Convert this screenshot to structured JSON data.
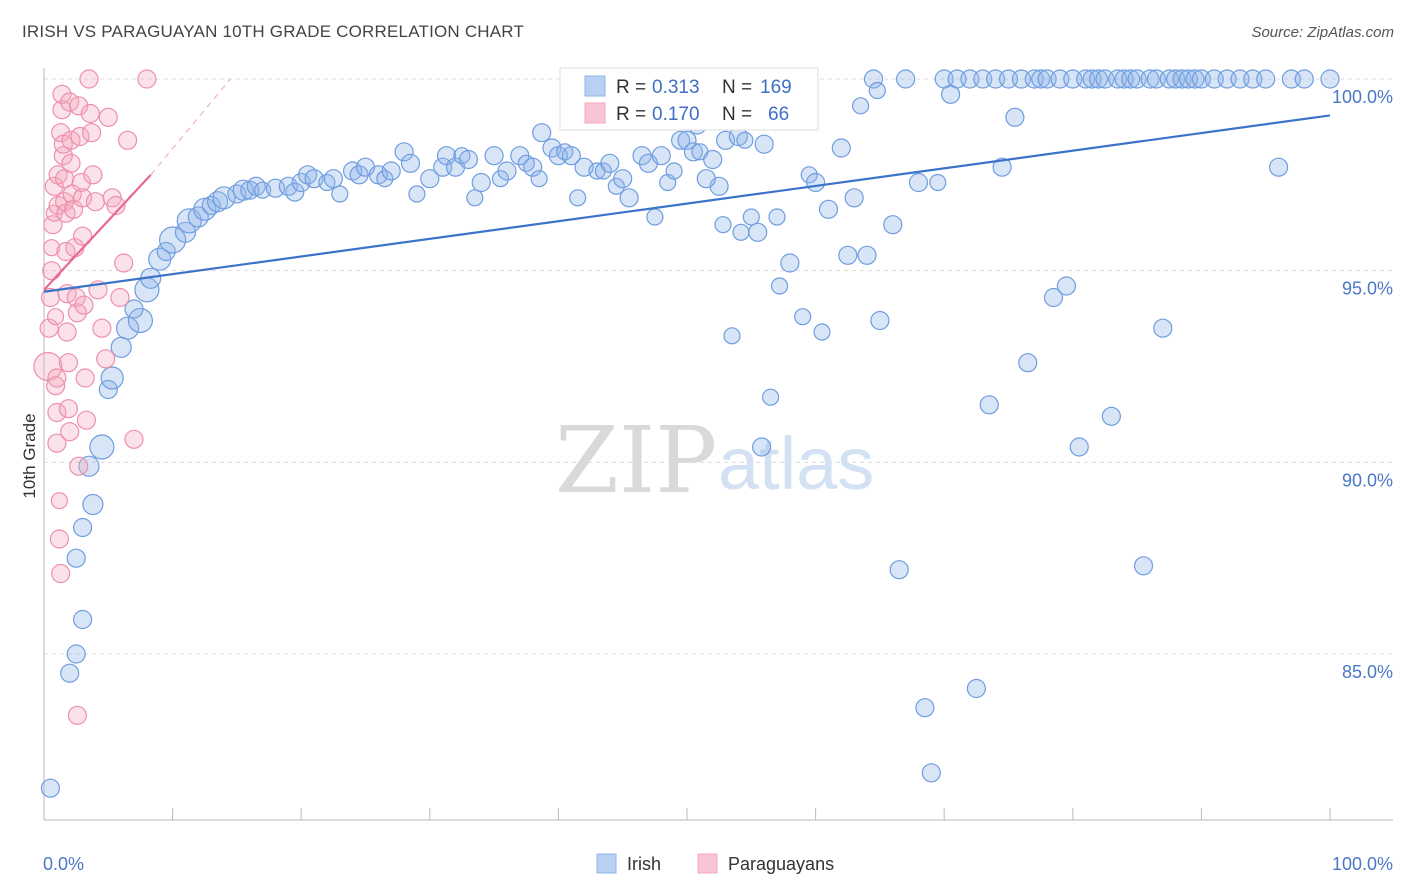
{
  "title": "IRISH VS PARAGUAYAN 10TH GRADE CORRELATION CHART",
  "source": "Source: ZipAtlas.com",
  "watermark": {
    "part1": "ZIP",
    "part2": "atlas"
  },
  "colors": {
    "irish": "#8fb4e8",
    "irish_line": "#3b73c8",
    "paraguayan": "#f4a8bf",
    "paraguayan_line": "#e8698f",
    "label": "#4a78c6"
  },
  "legend": {
    "rows": [
      {
        "r_label": "R =",
        "r_value": "0.313",
        "n_label": "N =",
        "n_value": "169"
      },
      {
        "r_label": "R =",
        "r_value": "0.170",
        "n_label": "N =",
        "n_value": "66"
      }
    ]
  },
  "bottom_legend": [
    "Irish",
    "Paraguayans"
  ],
  "chart_data": {
    "type": "scatter",
    "title": "IRISH VS PARAGUAYAN 10TH GRADE CORRELATION CHART",
    "xlabel": "",
    "ylabel": "10th Grade",
    "xlim": [
      0,
      100
    ],
    "ylim": [
      80.5,
      100.7
    ],
    "x_tick_labels": [
      "0.0%",
      "100.0%"
    ],
    "y_ticks": [
      {
        "value": 100,
        "label": "100.0%"
      },
      {
        "value": 95,
        "label": "95.0%"
      },
      {
        "value": 90,
        "label": "90.0%"
      },
      {
        "value": 85,
        "label": "85.0%"
      }
    ],
    "series": [
      {
        "name": "Irish",
        "trend": [
          [
            0,
            94.45
          ],
          [
            100,
            99.05
          ]
        ],
        "points": [
          [
            0.5,
            81.5,
            9
          ],
          [
            2,
            84.5,
            9
          ],
          [
            2.5,
            85,
            9
          ],
          [
            3,
            85.9,
            9
          ],
          [
            2.5,
            87.5,
            9
          ],
          [
            3,
            88.3,
            9
          ],
          [
            3.8,
            88.9,
            10
          ],
          [
            3.5,
            89.9,
            10
          ],
          [
            4.5,
            90.4,
            12
          ],
          [
            5,
            91.9,
            9
          ],
          [
            5.3,
            92.2,
            11
          ],
          [
            6,
            93,
            10
          ],
          [
            6.5,
            93.5,
            11
          ],
          [
            7.5,
            93.7,
            12
          ],
          [
            7,
            94,
            9
          ],
          [
            8,
            94.5,
            12
          ],
          [
            8.3,
            94.8,
            10
          ],
          [
            9,
            95.3,
            11
          ],
          [
            9.5,
            95.5,
            9
          ],
          [
            10,
            95.8,
            13
          ],
          [
            11,
            96,
            10
          ],
          [
            11.3,
            96.3,
            12
          ],
          [
            12,
            96.4,
            10
          ],
          [
            12.5,
            96.6,
            11
          ],
          [
            13,
            96.7,
            9
          ],
          [
            13.5,
            96.8,
            10
          ],
          [
            14,
            96.9,
            11
          ],
          [
            15,
            97,
            9
          ],
          [
            15.5,
            97.1,
            10
          ],
          [
            16,
            97.1,
            9
          ],
          [
            16.5,
            97.2,
            9
          ],
          [
            17,
            97.1,
            8
          ],
          [
            18,
            97.15,
            9
          ],
          [
            19,
            97.2,
            9
          ],
          [
            19.5,
            97.05,
            9
          ],
          [
            20,
            97.3,
            9
          ],
          [
            20.5,
            97.5,
            9
          ],
          [
            21,
            97.4,
            9
          ],
          [
            22,
            97.3,
            8
          ],
          [
            22.5,
            97.4,
            9
          ],
          [
            23,
            97,
            8
          ],
          [
            24,
            97.6,
            9
          ],
          [
            24.5,
            97.5,
            9
          ],
          [
            25,
            97.7,
            9
          ],
          [
            26,
            97.5,
            9
          ],
          [
            26.5,
            97.4,
            8
          ],
          [
            27,
            97.6,
            9
          ],
          [
            28,
            98.1,
            9
          ],
          [
            28.5,
            97.8,
            9
          ],
          [
            29,
            97,
            8
          ],
          [
            30,
            97.4,
            9
          ],
          [
            31,
            97.7,
            9
          ],
          [
            31.3,
            98,
            9
          ],
          [
            32,
            97.7,
            9
          ],
          [
            32.5,
            98,
            8
          ],
          [
            33,
            97.9,
            9
          ],
          [
            33.5,
            96.9,
            8
          ],
          [
            34,
            97.3,
            9
          ],
          [
            35,
            98,
            9
          ],
          [
            35.5,
            97.4,
            8
          ],
          [
            36,
            97.6,
            9
          ],
          [
            37,
            98,
            9
          ],
          [
            37.5,
            97.8,
            8
          ],
          [
            38,
            97.7,
            9
          ],
          [
            38.5,
            97.4,
            8
          ],
          [
            38.7,
            98.6,
            9
          ],
          [
            39.5,
            98.2,
            9
          ],
          [
            40,
            98,
            9
          ],
          [
            40.5,
            98.1,
            8
          ],
          [
            41,
            98,
            9
          ],
          [
            41.5,
            96.9,
            8
          ],
          [
            42,
            97.7,
            9
          ],
          [
            43,
            97.6,
            8
          ],
          [
            43.5,
            97.6,
            8
          ],
          [
            44,
            97.8,
            9
          ],
          [
            44.5,
            97.2,
            8
          ],
          [
            45,
            97.4,
            9
          ],
          [
            46,
            99,
            9
          ],
          [
            46.5,
            98,
            9
          ],
          [
            47,
            97.8,
            9
          ],
          [
            48,
            98,
            9
          ],
          [
            48.5,
            97.3,
            8
          ],
          [
            49,
            97.6,
            8
          ],
          [
            49.5,
            98.4,
            9
          ],
          [
            50,
            98.4,
            9
          ],
          [
            50.5,
            98.1,
            9
          ],
          [
            51,
            98.1,
            8
          ],
          [
            52,
            97.9,
            9
          ],
          [
            52.5,
            97.2,
            9
          ],
          [
            53,
            98.4,
            9
          ],
          [
            54,
            98.5,
            9
          ],
          [
            54.5,
            98.4,
            8
          ],
          [
            55,
            96.4,
            8
          ],
          [
            55.5,
            96,
            9
          ],
          [
            56,
            98.3,
            9
          ],
          [
            57,
            96.4,
            8
          ],
          [
            57.5,
            99.1,
            9
          ],
          [
            58,
            95.2,
            9
          ],
          [
            59,
            93.8,
            8
          ],
          [
            59.5,
            97.5,
            8
          ],
          [
            60,
            97.3,
            9
          ],
          [
            61,
            96.6,
            9
          ],
          [
            62,
            98.2,
            9
          ],
          [
            62.5,
            95.4,
            9
          ],
          [
            63,
            96.9,
            9
          ],
          [
            64,
            95.4,
            9
          ],
          [
            64.5,
            100,
            9
          ],
          [
            65,
            93.7,
            9
          ],
          [
            66,
            96.2,
            9
          ],
          [
            66.5,
            87.2,
            9
          ],
          [
            67,
            100,
            9
          ],
          [
            68,
            97.3,
            9
          ],
          [
            68.5,
            83.6,
            9
          ],
          [
            69,
            81.9,
            9
          ],
          [
            69.5,
            97.3,
            8
          ],
          [
            70,
            100,
            9
          ],
          [
            70.5,
            99.6,
            9
          ],
          [
            71,
            100,
            9
          ],
          [
            72,
            100,
            9
          ],
          [
            72.5,
            84.1,
            9
          ],
          [
            73,
            100,
            9
          ],
          [
            73.5,
            91.5,
            9
          ],
          [
            74,
            100,
            9
          ],
          [
            74.5,
            97.7,
            9
          ],
          [
            75,
            100,
            9
          ],
          [
            75.5,
            99,
            9
          ],
          [
            76,
            100,
            9
          ],
          [
            76.5,
            92.6,
            9
          ],
          [
            77,
            100,
            9
          ],
          [
            77.5,
            100,
            9
          ],
          [
            78,
            100,
            9
          ],
          [
            78.5,
            94.3,
            9
          ],
          [
            79,
            100,
            9
          ],
          [
            79.5,
            94.6,
            9
          ],
          [
            80,
            100,
            9
          ],
          [
            80.5,
            90.4,
            9
          ],
          [
            81,
            100,
            9
          ],
          [
            81.5,
            100,
            9
          ],
          [
            82,
            100,
            9
          ],
          [
            82.5,
            100,
            9
          ],
          [
            83,
            91.2,
            9
          ],
          [
            83.5,
            100,
            9
          ],
          [
            84,
            100,
            9
          ],
          [
            84.5,
            100,
            9
          ],
          [
            85,
            100,
            9
          ],
          [
            85.5,
            87.3,
            9
          ],
          [
            86,
            100,
            9
          ],
          [
            86.5,
            100,
            9
          ],
          [
            87,
            93.5,
            9
          ],
          [
            87.5,
            100,
            9
          ],
          [
            88,
            100,
            9
          ],
          [
            88.5,
            100,
            9
          ],
          [
            89,
            100,
            9
          ],
          [
            89.5,
            100,
            9
          ],
          [
            90,
            100,
            9
          ],
          [
            91,
            100,
            9
          ],
          [
            92,
            100,
            9
          ],
          [
            93,
            100,
            9
          ],
          [
            94,
            100,
            9
          ],
          [
            95,
            100,
            9
          ],
          [
            96,
            97.7,
            9
          ],
          [
            97,
            100,
            9
          ],
          [
            98,
            100,
            9
          ],
          [
            100,
            100,
            9
          ],
          [
            45.5,
            96.9,
            9
          ],
          [
            47.5,
            96.4,
            8
          ],
          [
            50.8,
            98.8,
            9
          ],
          [
            51.5,
            97.4,
            9
          ],
          [
            52.8,
            96.2,
            8
          ],
          [
            53.5,
            93.3,
            8
          ],
          [
            54.2,
            96,
            8
          ],
          [
            55.8,
            90.4,
            9
          ],
          [
            56.5,
            91.7,
            8
          ],
          [
            57.2,
            94.6,
            8
          ],
          [
            60.5,
            93.4,
            8
          ],
          [
            63.5,
            99.3,
            8
          ],
          [
            64.8,
            99.7,
            8
          ]
        ]
      },
      {
        "name": "Paraguayans",
        "trend": [
          [
            0,
            94.5
          ],
          [
            8.3,
            97.5
          ]
        ],
        "trend_dashed": [
          [
            8.3,
            97.5
          ],
          [
            14.5,
            100
          ]
        ],
        "points": [
          [
            0.3,
            92.5,
            14
          ],
          [
            0.4,
            93.5,
            9
          ],
          [
            0.5,
            94.3,
            9
          ],
          [
            0.6,
            95,
            9
          ],
          [
            0.6,
            95.6,
            8
          ],
          [
            0.7,
            96.2,
            9
          ],
          [
            0.8,
            96.5,
            8
          ],
          [
            0.8,
            97.2,
            9
          ],
          [
            0.9,
            92,
            9
          ],
          [
            0.9,
            93.8,
            8
          ],
          [
            1,
            90.5,
            9
          ],
          [
            1,
            91.3,
            9
          ],
          [
            1,
            92.2,
            9
          ],
          [
            1.1,
            96.7,
            9
          ],
          [
            1.1,
            97.5,
            9
          ],
          [
            1.2,
            89,
            8
          ],
          [
            1.2,
            88,
            9
          ],
          [
            1.3,
            87.1,
            9
          ],
          [
            1.3,
            98.6,
            9
          ],
          [
            1.4,
            99.2,
            9
          ],
          [
            1.4,
            99.6,
            9
          ],
          [
            1.5,
            98,
            9
          ],
          [
            1.5,
            98.3,
            9
          ],
          [
            1.6,
            97.4,
            9
          ],
          [
            1.6,
            96.8,
            9
          ],
          [
            1.7,
            96.5,
            9
          ],
          [
            1.7,
            95.5,
            9
          ],
          [
            1.8,
            94.4,
            9
          ],
          [
            1.8,
            93.4,
            9
          ],
          [
            1.9,
            92.6,
            9
          ],
          [
            1.9,
            91.4,
            9
          ],
          [
            2,
            90.8,
            9
          ],
          [
            2,
            99.4,
            9
          ],
          [
            2.1,
            98.4,
            9
          ],
          [
            2.1,
            97.8,
            9
          ],
          [
            2.2,
            97,
            9
          ],
          [
            2.3,
            96.6,
            9
          ],
          [
            2.4,
            95.6,
            9
          ],
          [
            2.5,
            94.3,
            9
          ],
          [
            2.6,
            93.9,
            9
          ],
          [
            2.6,
            83.4,
            9
          ],
          [
            2.7,
            89.9,
            9
          ],
          [
            2.7,
            99.3,
            9
          ],
          [
            2.8,
            98.5,
            9
          ],
          [
            2.9,
            97.3,
            9
          ],
          [
            3,
            96.9,
            9
          ],
          [
            3,
            95.9,
            9
          ],
          [
            3.1,
            94.1,
            9
          ],
          [
            3.2,
            92.2,
            9
          ],
          [
            3.3,
            91.1,
            9
          ],
          [
            3.5,
            100,
            9
          ],
          [
            3.6,
            99.1,
            9
          ],
          [
            3.7,
            98.6,
            9
          ],
          [
            3.8,
            97.5,
            9
          ],
          [
            4,
            96.8,
            9
          ],
          [
            4.2,
            94.5,
            9
          ],
          [
            4.5,
            93.5,
            9
          ],
          [
            4.8,
            92.7,
            9
          ],
          [
            5,
            99,
            9
          ],
          [
            5.3,
            96.9,
            9
          ],
          [
            5.6,
            96.7,
            9
          ],
          [
            5.9,
            94.3,
            9
          ],
          [
            6.2,
            95.2,
            9
          ],
          [
            6.5,
            98.4,
            9
          ],
          [
            7,
            90.6,
            9
          ],
          [
            8,
            100,
            9
          ]
        ]
      }
    ]
  }
}
